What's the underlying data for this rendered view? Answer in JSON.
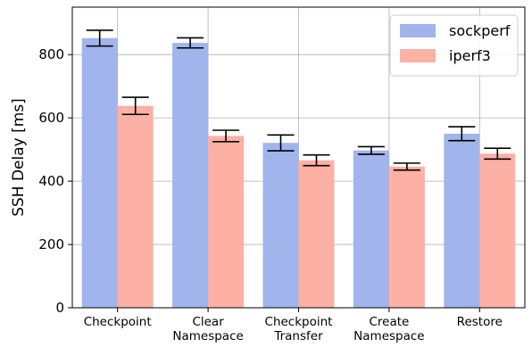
{
  "chart_data": {
    "type": "bar",
    "categories": [
      [
        "Checkpoint"
      ],
      [
        "Clear",
        "Namespace"
      ],
      [
        "Checkpoint",
        "Transfer"
      ],
      [
        "Create",
        "Namespace"
      ],
      [
        "Restore"
      ]
    ],
    "series": [
      {
        "name": "sockperf",
        "color": "#a1b4ec",
        "values": [
          852,
          837,
          521,
          497,
          550
        ],
        "errors": [
          25,
          16,
          25,
          12,
          22
        ]
      },
      {
        "name": "iperf3",
        "color": "#fdb0a4",
        "values": [
          638,
          543,
          466,
          446,
          487
        ],
        "errors": [
          27,
          18,
          17,
          11,
          17
        ]
      }
    ],
    "xlabel": "",
    "ylabel": "SSH Delay [ms]",
    "ylim": [
      0,
      950
    ],
    "yticks": [
      0,
      200,
      400,
      600,
      800
    ],
    "grid": true,
    "legend_position": "top-right"
  }
}
